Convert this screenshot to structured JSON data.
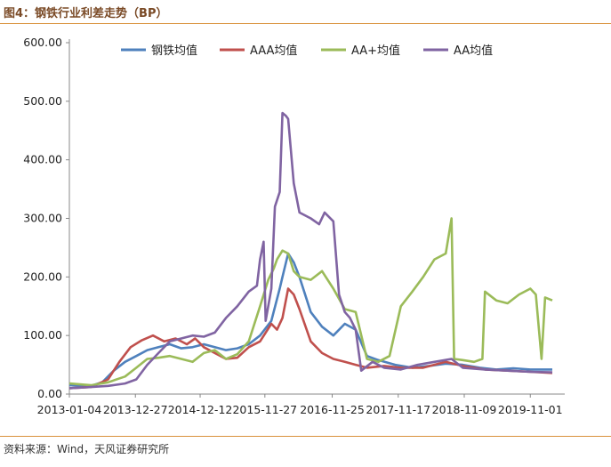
{
  "figure_title": "图4：钢铁行业利差走势（BP）",
  "source": "资料来源：Wind，天风证券研究所",
  "colors": {
    "steel_avg": "#4f81bd",
    "aaa": "#c0504d",
    "aa_plus": "#9bbb59",
    "aa": "#8064a2",
    "accent_rule": "#d9913a"
  },
  "chart_data": {
    "type": "line",
    "title": "",
    "xlabel": "",
    "ylabel": "",
    "ylim": [
      0,
      600
    ],
    "yticks": [
      "0.00",
      "100.00",
      "200.00",
      "300.00",
      "400.00",
      "500.00",
      "600.00"
    ],
    "xlim": [
      "2013-01-04",
      "2020-02-28"
    ],
    "xticks": [
      "2013-01-04",
      "2013-12-27",
      "2014-12-12",
      "2015-11-27",
      "2016-11-25",
      "2017-11-17",
      "2018-11-09",
      "2019-11-01"
    ],
    "grid": false,
    "legend_position": "top",
    "series": [
      {
        "name": "钢铁均值",
        "color_key": "steel_avg",
        "points": [
          [
            "2013-01-04",
            15
          ],
          [
            "2013-05-01",
            14
          ],
          [
            "2013-07-01",
            20
          ],
          [
            "2013-09-01",
            40
          ],
          [
            "2013-11-01",
            55
          ],
          [
            "2014-01-01",
            65
          ],
          [
            "2014-03-01",
            75
          ],
          [
            "2014-05-01",
            80
          ],
          [
            "2014-07-01",
            85
          ],
          [
            "2014-09-01",
            78
          ],
          [
            "2014-11-01",
            80
          ],
          [
            "2015-01-01",
            85
          ],
          [
            "2015-03-01",
            80
          ],
          [
            "2015-05-01",
            75
          ],
          [
            "2015-07-01",
            78
          ],
          [
            "2015-09-01",
            85
          ],
          [
            "2015-11-01",
            100
          ],
          [
            "2016-01-01",
            125
          ],
          [
            "2016-02-15",
            180
          ],
          [
            "2016-03-01",
            200
          ],
          [
            "2016-04-01",
            240
          ],
          [
            "2016-05-01",
            225
          ],
          [
            "2016-06-01",
            200
          ],
          [
            "2016-08-01",
            140
          ],
          [
            "2016-10-01",
            115
          ],
          [
            "2016-12-01",
            100
          ],
          [
            "2017-02-01",
            120
          ],
          [
            "2017-04-01",
            110
          ],
          [
            "2017-06-01",
            65
          ],
          [
            "2017-08-01",
            58
          ],
          [
            "2017-11-01",
            50
          ],
          [
            "2018-02-01",
            45
          ],
          [
            "2018-05-01",
            48
          ],
          [
            "2018-08-01",
            52
          ],
          [
            "2018-11-01",
            50
          ],
          [
            "2019-02-01",
            45
          ],
          [
            "2019-05-01",
            42
          ],
          [
            "2019-08-01",
            44
          ],
          [
            "2019-11-01",
            42
          ],
          [
            "2020-02-28",
            42
          ]
        ]
      },
      {
        "name": "AAA均值",
        "color_key": "aaa",
        "points": [
          [
            "2013-01-04",
            10
          ],
          [
            "2013-05-01",
            12
          ],
          [
            "2013-08-01",
            25
          ],
          [
            "2013-10-01",
            55
          ],
          [
            "2013-12-01",
            80
          ],
          [
            "2014-02-01",
            92
          ],
          [
            "2014-04-01",
            100
          ],
          [
            "2014-06-01",
            90
          ],
          [
            "2014-08-01",
            95
          ],
          [
            "2014-10-01",
            85
          ],
          [
            "2014-11-15",
            95
          ],
          [
            "2015-01-01",
            80
          ],
          [
            "2015-03-01",
            70
          ],
          [
            "2015-05-01",
            60
          ],
          [
            "2015-07-01",
            62
          ],
          [
            "2015-09-01",
            80
          ],
          [
            "2015-11-01",
            90
          ],
          [
            "2016-01-01",
            120
          ],
          [
            "2016-02-01",
            110
          ],
          [
            "2016-03-01",
            130
          ],
          [
            "2016-04-01",
            180
          ],
          [
            "2016-05-01",
            170
          ],
          [
            "2016-06-01",
            145
          ],
          [
            "2016-08-01",
            90
          ],
          [
            "2016-10-01",
            70
          ],
          [
            "2016-12-01",
            60
          ],
          [
            "2017-02-01",
            55
          ],
          [
            "2017-04-01",
            50
          ],
          [
            "2017-06-01",
            45
          ],
          [
            "2017-09-01",
            48
          ],
          [
            "2017-12-01",
            45
          ],
          [
            "2018-04-01",
            45
          ],
          [
            "2018-08-01",
            55
          ],
          [
            "2018-11-01",
            48
          ],
          [
            "2019-03-01",
            42
          ],
          [
            "2019-07-01",
            40
          ],
          [
            "2019-11-01",
            38
          ],
          [
            "2020-02-28",
            36
          ]
        ]
      },
      {
        "name": "AA+均值",
        "color_key": "aa_plus",
        "points": [
          [
            "2013-01-04",
            18
          ],
          [
            "2013-05-01",
            15
          ],
          [
            "2013-08-01",
            20
          ],
          [
            "2013-11-01",
            30
          ],
          [
            "2014-01-01",
            45
          ],
          [
            "2014-03-01",
            60
          ],
          [
            "2014-05-01",
            62
          ],
          [
            "2014-07-01",
            65
          ],
          [
            "2014-09-01",
            60
          ],
          [
            "2014-11-01",
            55
          ],
          [
            "2015-01-01",
            70
          ],
          [
            "2015-03-01",
            75
          ],
          [
            "2015-05-01",
            60
          ],
          [
            "2015-07-01",
            68
          ],
          [
            "2015-09-01",
            90
          ],
          [
            "2015-11-01",
            150
          ],
          [
            "2015-12-15",
            195
          ],
          [
            "2016-01-15",
            215
          ],
          [
            "2016-02-01",
            230
          ],
          [
            "2016-03-01",
            245
          ],
          [
            "2016-04-01",
            240
          ],
          [
            "2016-05-01",
            210
          ],
          [
            "2016-06-01",
            200
          ],
          [
            "2016-08-01",
            195
          ],
          [
            "2016-10-01",
            210
          ],
          [
            "2016-12-01",
            180
          ],
          [
            "2017-02-01",
            145
          ],
          [
            "2017-04-01",
            140
          ],
          [
            "2017-06-01",
            60
          ],
          [
            "2017-08-01",
            55
          ],
          [
            "2017-10-01",
            65
          ],
          [
            "2017-12-01",
            150
          ],
          [
            "2018-02-01",
            175
          ],
          [
            "2018-04-01",
            200
          ],
          [
            "2018-06-01",
            230
          ],
          [
            "2018-08-01",
            240
          ],
          [
            "2018-09-01",
            300
          ],
          [
            "2018-09-15",
            60
          ],
          [
            "2018-11-01",
            58
          ],
          [
            "2019-01-01",
            55
          ],
          [
            "2019-02-15",
            60
          ],
          [
            "2019-03-01",
            175
          ],
          [
            "2019-05-01",
            160
          ],
          [
            "2019-07-01",
            155
          ],
          [
            "2019-09-01",
            170
          ],
          [
            "2019-11-01",
            180
          ],
          [
            "2019-12-01",
            170
          ],
          [
            "2020-01-01",
            60
          ],
          [
            "2020-01-20",
            165
          ],
          [
            "2020-02-28",
            160
          ]
        ]
      },
      {
        "name": "AA均值",
        "color_key": "aa",
        "points": [
          [
            "2013-01-04",
            10
          ],
          [
            "2013-05-01",
            12
          ],
          [
            "2013-08-01",
            14
          ],
          [
            "2013-11-01",
            18
          ],
          [
            "2014-01-01",
            25
          ],
          [
            "2014-03-01",
            50
          ],
          [
            "2014-05-01",
            70
          ],
          [
            "2014-07-01",
            90
          ],
          [
            "2014-09-01",
            95
          ],
          [
            "2014-11-01",
            100
          ],
          [
            "2015-01-01",
            98
          ],
          [
            "2015-03-01",
            105
          ],
          [
            "2015-05-01",
            130
          ],
          [
            "2015-07-01",
            150
          ],
          [
            "2015-09-01",
            175
          ],
          [
            "2015-10-15",
            185
          ],
          [
            "2015-11-01",
            230
          ],
          [
            "2015-11-20",
            260
          ],
          [
            "2015-12-01",
            125
          ],
          [
            "2016-01-01",
            180
          ],
          [
            "2016-01-20",
            320
          ],
          [
            "2016-02-15",
            345
          ],
          [
            "2016-03-01",
            480
          ],
          [
            "2016-03-20",
            475
          ],
          [
            "2016-04-01",
            470
          ],
          [
            "2016-05-01",
            360
          ],
          [
            "2016-06-01",
            310
          ],
          [
            "2016-08-01",
            300
          ],
          [
            "2016-09-15",
            290
          ],
          [
            "2016-10-15",
            310
          ],
          [
            "2016-12-01",
            295
          ],
          [
            "2017-01-01",
            170
          ],
          [
            "2017-02-01",
            140
          ],
          [
            "2017-03-01",
            130
          ],
          [
            "2017-04-01",
            110
          ],
          [
            "2017-05-01",
            40
          ],
          [
            "2017-07-01",
            55
          ],
          [
            "2017-09-01",
            45
          ],
          [
            "2017-12-01",
            42
          ],
          [
            "2018-03-01",
            50
          ],
          [
            "2018-06-01",
            55
          ],
          [
            "2018-09-01",
            60
          ],
          [
            "2018-11-01",
            45
          ],
          [
            "2019-03-01",
            42
          ],
          [
            "2019-07-01",
            40
          ],
          [
            "2019-11-01",
            38
          ],
          [
            "2020-02-28",
            37
          ]
        ]
      }
    ]
  }
}
